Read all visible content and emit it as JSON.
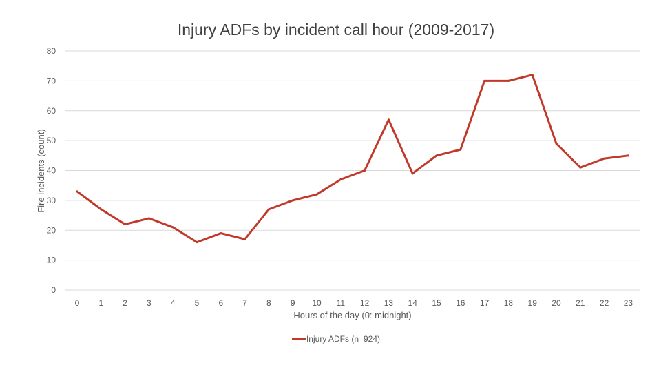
{
  "chart_data": {
    "type": "line",
    "title": "Injury ADFs by incident call hour (2009-2017)",
    "xlabel": "Hours of the day (0: midnight)",
    "ylabel": "Fire incidents (count)",
    "categories": [
      "0",
      "1",
      "2",
      "3",
      "4",
      "5",
      "6",
      "7",
      "8",
      "9",
      "10",
      "11",
      "12",
      "13",
      "14",
      "15",
      "16",
      "17",
      "18",
      "19",
      "20",
      "21",
      "22",
      "23"
    ],
    "yticks": [
      "0",
      "10",
      "20",
      "30",
      "40",
      "50",
      "60",
      "70",
      "80"
    ],
    "ylim": [
      0,
      80
    ],
    "grid": true,
    "legend_position": "bottom",
    "series": [
      {
        "name": "Injury ADFs (n=924)",
        "color": "#c0392b",
        "values": [
          33,
          27,
          22,
          24,
          21,
          16,
          19,
          17,
          27,
          30,
          32,
          37,
          40,
          57,
          39,
          45,
          47,
          70,
          70,
          72,
          49,
          41,
          44,
          45
        ]
      }
    ]
  }
}
